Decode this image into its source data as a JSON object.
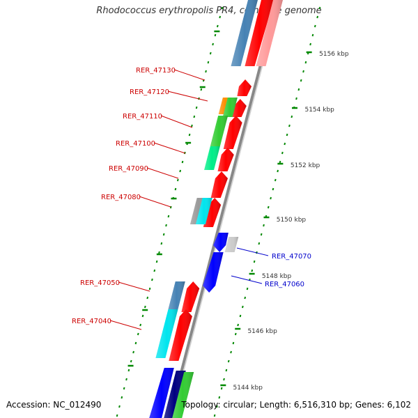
{
  "title": "Rhodococcus erythropolis PR4, complete genome",
  "footer": {
    "accession": "Accession: NC_012490",
    "summary": "Topology: circular; Length: 6,516,310 bp; Genes: 6,102"
  },
  "scale_labels": [
    "5156 kbp",
    "5154 kbp",
    "5152 kbp",
    "5150 kbp",
    "5148 kbp",
    "5146 kbp",
    "5144 kbp"
  ],
  "gene_labels": [
    {
      "text": "RER_47130",
      "color": "#cc0000",
      "side": "left"
    },
    {
      "text": "RER_47120",
      "color": "#cc0000",
      "side": "left"
    },
    {
      "text": "RER_47110",
      "color": "#cc0000",
      "side": "left"
    },
    {
      "text": "RER_47100",
      "color": "#cc0000",
      "side": "left"
    },
    {
      "text": "RER_47090",
      "color": "#cc0000",
      "side": "left"
    },
    {
      "text": "RER_47080",
      "color": "#cc0000",
      "side": "left"
    },
    {
      "text": "RER_47070",
      "color": "#0000cc",
      "side": "right"
    },
    {
      "text": "RER_47060",
      "color": "#0000cc",
      "side": "right"
    },
    {
      "text": "RER_47050",
      "color": "#cc0000",
      "side": "left"
    },
    {
      "text": "RER_47040",
      "color": "#cc0000",
      "side": "left"
    }
  ],
  "colors": {
    "forward_strand": "#ff0000",
    "reverse_strand": "#0000ff",
    "backbone": "#888888",
    "ruler": "#008800",
    "category_steelblue": "#4682b4",
    "category_orange": "#ff8c00",
    "category_green": "#33cc33",
    "category_springgreen": "#00ee88",
    "category_grey": "#999999",
    "category_cyan": "#00e5ee",
    "category_lightgrey": "#cccccc",
    "category_navy": "#000080"
  }
}
